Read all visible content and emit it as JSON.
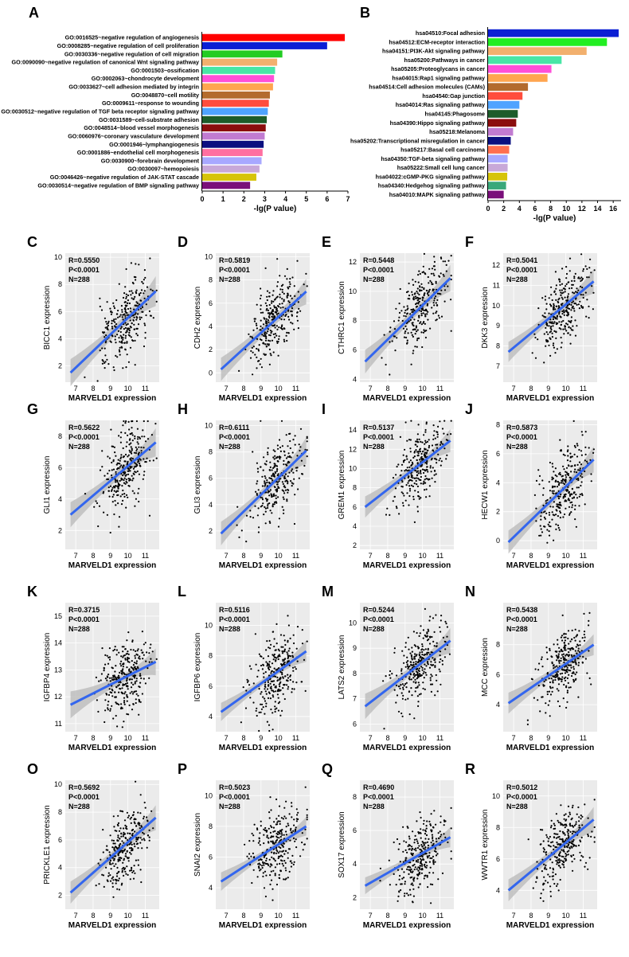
{
  "chart_data": [
    {
      "panel": "A",
      "type": "bar",
      "orientation": "horizontal",
      "xlabel": "-lg(P value)",
      "xlim": [
        0,
        7
      ],
      "xticks": [
        0,
        1,
        2,
        3,
        4,
        5,
        6,
        7
      ],
      "categories": [
        "GO:0016525~negative regulation of angiogenesis",
        "GO:0008285~negative regulation of cell proliferation",
        "GO:0030336~negative regulation of cell migration",
        "GO:0090090~negative regulation of canonical Wnt signaling pathway",
        "GO:0001503~ossification",
        "GO:0002063~chondrocyte development",
        "GO:0033627~cell adhesion mediated by integrin",
        "GO:0048870~cell motility",
        "GO:0009611~response to wounding",
        "GO:0030512~negative regulation of TGF beta receptor signaling pathway",
        "GO:0031589~cell-substrate adhesion",
        "GO:0048514~blood vessel morphogenesis",
        "GO:0060976~coronary vasculature development",
        "GO:0001946~lymphangiogenesis",
        "GO:0001886~endothelial cell morphogenesis",
        "GO:0030900~forebrain development",
        "GO:0030097~hemopoiesis",
        "GO:0046426~negative regulation of JAK-STAT cascade",
        "GO:0030514~negative regulation of BMP signaling pathway"
      ],
      "values": [
        6.85,
        6.0,
        3.85,
        3.6,
        3.5,
        3.45,
        3.4,
        3.25,
        3.2,
        3.15,
        3.1,
        3.05,
        3.0,
        2.95,
        2.9,
        2.85,
        2.75,
        2.6,
        2.3
      ],
      "colors": [
        "#ff0000",
        "#0b1fd4",
        "#22cc22",
        "#f2b06e",
        "#48e6a6",
        "#ff4fd8",
        "#ffa54f",
        "#b36b2e",
        "#ff4d3d",
        "#4fa3ff",
        "#1d5c2a",
        "#8b0d0d",
        "#c17bd1",
        "#0a0f80",
        "#ff6fa0",
        "#a8a8ff",
        "#c8a8d8",
        "#d6c40a",
        "#7a0f7a"
      ]
    },
    {
      "panel": "B",
      "type": "bar",
      "orientation": "horizontal",
      "xlabel": "-lg(P value)",
      "xlim": [
        0,
        17
      ],
      "xticks": [
        0,
        2,
        4,
        6,
        8,
        10,
        12,
        14,
        16
      ],
      "categories": [
        "hsa04510:Focal adhesion",
        "hsa04512:ECM-receptor interaction",
        "hsa04151:PI3K-Akt signaling pathway",
        "hsa05200:Pathways in cancer",
        "hsa05205:Proteoglycans in cancer",
        "hsa04015:Rap1 signaling pathway",
        "hsa04514:Cell adhesion molecules (CAMs)",
        "hsa04540:Gap junction",
        "hsa04014:Ras signaling pathway",
        "hsa04145:Phagosome",
        "hsa04390:Hippo signaling pathway",
        "hsa05218:Melanoma",
        "hsa05202:Transcriptional misregulation in cancer",
        "hsa05217:Basal cell carcinoma",
        "hsa04350:TGF-beta signaling pathway",
        "hsa05222:Small cell lung cancer",
        "hsa04022:cGMP-PKG signaling pathway",
        "hsa04340:Hedgehog signaling pathway",
        "hsa04010:MAPK signaling pathway"
      ],
      "values": [
        16.7,
        15.2,
        12.6,
        9.4,
        8.1,
        7.6,
        5.1,
        4.4,
        4.0,
        3.8,
        3.6,
        3.2,
        2.9,
        2.7,
        2.5,
        2.5,
        2.45,
        2.3,
        2.0
      ],
      "colors": [
        "#0b1fd4",
        "#22ee22",
        "#f2b06e",
        "#48e6a6",
        "#ff4fd8",
        "#ffa54f",
        "#b36b2e",
        "#ff4d3d",
        "#4fa3ff",
        "#1d5c2a",
        "#8b0d0d",
        "#c17bd1",
        "#0a0f80",
        "#ff6f50",
        "#a8a8ff",
        "#c8a8d8",
        "#d6c40a",
        "#3aa87a",
        "#7a0f7a"
      ]
    },
    {
      "panel": "C",
      "type": "scatter",
      "gene": "BICC1",
      "ylabel": "BICC1 expression",
      "xlabel": "MARVELD1 expression",
      "stats": [
        "R=0.5550",
        "P<0.0001",
        "N=288"
      ],
      "xlim": [
        6.4,
        11.8
      ],
      "xticks": [
        7,
        8,
        9,
        10,
        11
      ],
      "ylim": [
        0.8,
        10.3
      ],
      "yticks": [
        2,
        4,
        6,
        8,
        10
      ],
      "fit": [
        [
          6.7,
          1.5
        ],
        [
          11.6,
          7.5
        ]
      ],
      "band": [
        1.0,
        0.4,
        1.1
      ]
    },
    {
      "panel": "D",
      "type": "scatter",
      "gene": "CDH2",
      "ylabel": "CDH2 expression",
      "xlabel": "MARVELD1 expression",
      "stats": [
        "R=0.5819",
        "P<0.0001",
        "N=288"
      ],
      "xlim": [
        6.4,
        11.8
      ],
      "xticks": [
        7,
        8,
        9,
        10,
        11
      ],
      "ylim": [
        -0.8,
        10.3
      ],
      "yticks": [
        0,
        2,
        4,
        6,
        8,
        10
      ],
      "fit": [
        [
          6.7,
          0.3
        ],
        [
          11.6,
          7.0
        ]
      ],
      "band": [
        1.0,
        0.4,
        1.1
      ]
    },
    {
      "panel": "E",
      "type": "scatter",
      "gene": "CTHRC1",
      "ylabel": "CTHRC1 expression",
      "xlabel": "MARVELD1 expression",
      "stats": [
        "R=0.5448",
        "P<0.0001",
        "N=288"
      ],
      "xlim": [
        6.4,
        11.8
      ],
      "xticks": [
        7,
        8,
        9,
        10,
        11
      ],
      "ylim": [
        3.8,
        12.6
      ],
      "yticks": [
        4,
        6,
        8,
        10,
        12
      ],
      "fit": [
        [
          6.7,
          5.2
        ],
        [
          11.6,
          10.9
        ]
      ],
      "band": [
        0.8,
        0.3,
        0.9
      ]
    },
    {
      "panel": "F",
      "type": "scatter",
      "gene": "DKK3",
      "ylabel": "DKK3 expression",
      "xlabel": "MARVELD1 expression",
      "stats": [
        "R=0.5041",
        "P<0.0001",
        "N=288"
      ],
      "xlim": [
        6.4,
        11.8
      ],
      "xticks": [
        7,
        8,
        9,
        10,
        11
      ],
      "ylim": [
        6.2,
        12.6
      ],
      "yticks": [
        7,
        8,
        9,
        10,
        11,
        12
      ],
      "fit": [
        [
          6.7,
          7.7
        ],
        [
          11.6,
          11.2
        ]
      ],
      "band": [
        0.5,
        0.2,
        0.6
      ]
    },
    {
      "panel": "G",
      "type": "scatter",
      "gene": "GLI1",
      "ylabel": "GLI1 expression",
      "xlabel": "MARVELD1 expression",
      "stats": [
        "R=0.5622",
        "P<0.0001",
        "N=288"
      ],
      "xlim": [
        6.4,
        11.8
      ],
      "xticks": [
        7,
        8,
        9,
        10,
        11
      ],
      "ylim": [
        0.8,
        9.0
      ],
      "yticks": [
        2,
        4,
        6,
        8
      ],
      "fit": [
        [
          6.7,
          3.0
        ],
        [
          11.6,
          7.6
        ]
      ],
      "band": [
        0.8,
        0.3,
        0.9
      ]
    },
    {
      "panel": "H",
      "type": "scatter",
      "gene": "GLI3",
      "ylabel": "GLI3 expression",
      "xlabel": "MARVELD1 expression",
      "stats": [
        "R=0.6111",
        "P<0.0001",
        "N=288"
      ],
      "xlim": [
        6.4,
        11.8
      ],
      "xticks": [
        7,
        8,
        9,
        10,
        11
      ],
      "ylim": [
        0.6,
        10.4
      ],
      "yticks": [
        2,
        4,
        6,
        8,
        10
      ],
      "fit": [
        [
          6.7,
          1.8
        ],
        [
          11.6,
          8.1
        ]
      ],
      "band": [
        0.9,
        0.3,
        1.0
      ]
    },
    {
      "panel": "I",
      "type": "scatter",
      "gene": "GREM1",
      "ylabel": "GREM1 expression",
      "xlabel": "MARVELD1 expression",
      "stats": [
        "R=0.5137",
        "P<0.0001",
        "N=288"
      ],
      "xlim": [
        6.4,
        11.8
      ],
      "xticks": [
        7,
        8,
        9,
        10,
        11
      ],
      "ylim": [
        1.6,
        15.0
      ],
      "yticks": [
        2,
        4,
        6,
        8,
        10,
        12,
        14
      ],
      "fit": [
        [
          6.7,
          6.0
        ],
        [
          11.6,
          12.9
        ]
      ],
      "band": [
        1.1,
        0.4,
        1.2
      ]
    },
    {
      "panel": "J",
      "type": "scatter",
      "gene": "HECW1",
      "ylabel": "HECW1 expression",
      "xlabel": "MARVELD1 expression",
      "stats": [
        "R=0.5873",
        "P<0.0001",
        "N=288"
      ],
      "xlim": [
        6.4,
        11.8
      ],
      "xticks": [
        7,
        8,
        9,
        10,
        11
      ],
      "ylim": [
        -0.6,
        8.3
      ],
      "yticks": [
        0,
        2,
        4,
        6,
        8
      ],
      "fit": [
        [
          6.7,
          -0.1
        ],
        [
          11.6,
          5.6
        ]
      ],
      "band": [
        0.8,
        0.3,
        0.9
      ]
    },
    {
      "panel": "K",
      "type": "scatter",
      "gene": "IGFBP4",
      "ylabel": "IGFBP4 expression",
      "xlabel": "MARVELD1 expression",
      "stats": [
        "R=0.3715",
        "P<0.0001",
        "N=288"
      ],
      "xlim": [
        6.4,
        11.8
      ],
      "xticks": [
        7,
        8,
        9,
        10,
        11
      ],
      "ylim": [
        10.7,
        15.5
      ],
      "yticks": [
        11,
        12,
        13,
        14,
        15
      ],
      "fit": [
        [
          6.7,
          11.7
        ],
        [
          11.6,
          13.3
        ]
      ],
      "band": [
        0.5,
        0.15,
        0.5
      ]
    },
    {
      "panel": "L",
      "type": "scatter",
      "gene": "IGFBP6",
      "ylabel": "IGFBP6 expression",
      "xlabel": "MARVELD1 expression",
      "stats": [
        "R=0.5116",
        "P<0.0001",
        "N=288"
      ],
      "xlim": [
        6.4,
        11.8
      ],
      "xticks": [
        7,
        8,
        9,
        10,
        11
      ],
      "ylim": [
        3.0,
        11.5
      ],
      "yticks": [
        4,
        6,
        8,
        10
      ],
      "fit": [
        [
          6.7,
          4.3
        ],
        [
          11.6,
          8.3
        ]
      ],
      "band": [
        0.6,
        0.2,
        0.7
      ]
    },
    {
      "panel": "M",
      "type": "scatter",
      "gene": "LATS2",
      "ylabel": "LATS2 expression",
      "xlabel": "MARVELD1 expression",
      "stats": [
        "R=0.5244",
        "P<0.0001",
        "N=288"
      ],
      "xlim": [
        6.4,
        11.8
      ],
      "xticks": [
        7,
        8,
        9,
        10,
        11
      ],
      "ylim": [
        5.7,
        10.8
      ],
      "yticks": [
        6,
        7,
        8,
        9,
        10
      ],
      "fit": [
        [
          6.7,
          6.7
        ],
        [
          11.6,
          9.3
        ]
      ],
      "band": [
        0.5,
        0.15,
        0.5
      ]
    },
    {
      "panel": "N",
      "type": "scatter",
      "gene": "MCC",
      "ylabel": "MCC expression",
      "xlabel": "MARVELD1 expression",
      "stats": [
        "R=0.5438",
        "P<0.0001",
        "N=288"
      ],
      "xlim": [
        6.4,
        11.8
      ],
      "xticks": [
        7,
        8,
        9,
        10,
        11
      ],
      "ylim": [
        2.2,
        10.8
      ],
      "yticks": [
        4,
        6,
        8
      ],
      "fit": [
        [
          6.7,
          4.1
        ],
        [
          11.6,
          8.0
        ]
      ],
      "band": [
        0.7,
        0.25,
        0.7
      ]
    },
    {
      "panel": "O",
      "type": "scatter",
      "gene": "PRICKLE1",
      "ylabel": "PRICKLE1 expression",
      "xlabel": "MARVELD1 expression",
      "stats": [
        "R=0.5692",
        "P<0.0001",
        "N=288"
      ],
      "xlim": [
        6.4,
        11.8
      ],
      "xticks": [
        7,
        8,
        9,
        10,
        11
      ],
      "ylim": [
        1.0,
        10.3
      ],
      "yticks": [
        2,
        4,
        6,
        8,
        10
      ],
      "fit": [
        [
          6.7,
          2.2
        ],
        [
          11.6,
          7.6
        ]
      ],
      "band": [
        0.8,
        0.3,
        0.9
      ]
    },
    {
      "panel": "P",
      "type": "scatter",
      "gene": "SNAI2",
      "ylabel": "SNAI2 expression",
      "xlabel": "MARVELD1 expression",
      "stats": [
        "R=0.5023",
        "P<0.0001",
        "N=288"
      ],
      "xlim": [
        6.4,
        11.8
      ],
      "xticks": [
        7,
        8,
        9,
        10,
        11
      ],
      "ylim": [
        2.6,
        11.0
      ],
      "yticks": [
        4,
        6,
        8,
        10
      ],
      "fit": [
        [
          6.7,
          4.4
        ],
        [
          11.6,
          8.0
        ]
      ],
      "band": [
        0.6,
        0.2,
        0.6
      ]
    },
    {
      "panel": "Q",
      "type": "scatter",
      "gene": "SOX17",
      "ylabel": "SOX17 expression",
      "xlabel": "MARVELD1 expression",
      "stats": [
        "R=0.4690",
        "P<0.0001",
        "N=288"
      ],
      "xlim": [
        6.4,
        11.8
      ],
      "xticks": [
        7,
        8,
        9,
        10,
        11
      ],
      "ylim": [
        1.3,
        9.0
      ],
      "yticks": [
        2,
        4,
        6,
        8
      ],
      "fit": [
        [
          6.7,
          2.7
        ],
        [
          11.6,
          5.6
        ]
      ],
      "band": [
        0.5,
        0.2,
        0.6
      ]
    },
    {
      "panel": "R",
      "type": "scatter",
      "gene": "WWTR1",
      "ylabel": "WWTR1 expression",
      "xlabel": "MARVELD1 expression",
      "stats": [
        "R=0.5012",
        "P<0.0001",
        "N=288"
      ],
      "xlim": [
        6.4,
        11.8
      ],
      "xticks": [
        7,
        8,
        9,
        10,
        11
      ],
      "ylim": [
        2.8,
        11.0
      ],
      "yticks": [
        4,
        6,
        8,
        10
      ],
      "fit": [
        [
          6.7,
          4.0
        ],
        [
          11.6,
          8.5
        ]
      ],
      "band": [
        0.7,
        0.25,
        0.8
      ]
    }
  ],
  "colors": {
    "fit_line": "#3366ee",
    "band": "#b8b8b8",
    "panel_bg": "#ebebeb",
    "grid": "#ffffff",
    "points": "#000000"
  }
}
